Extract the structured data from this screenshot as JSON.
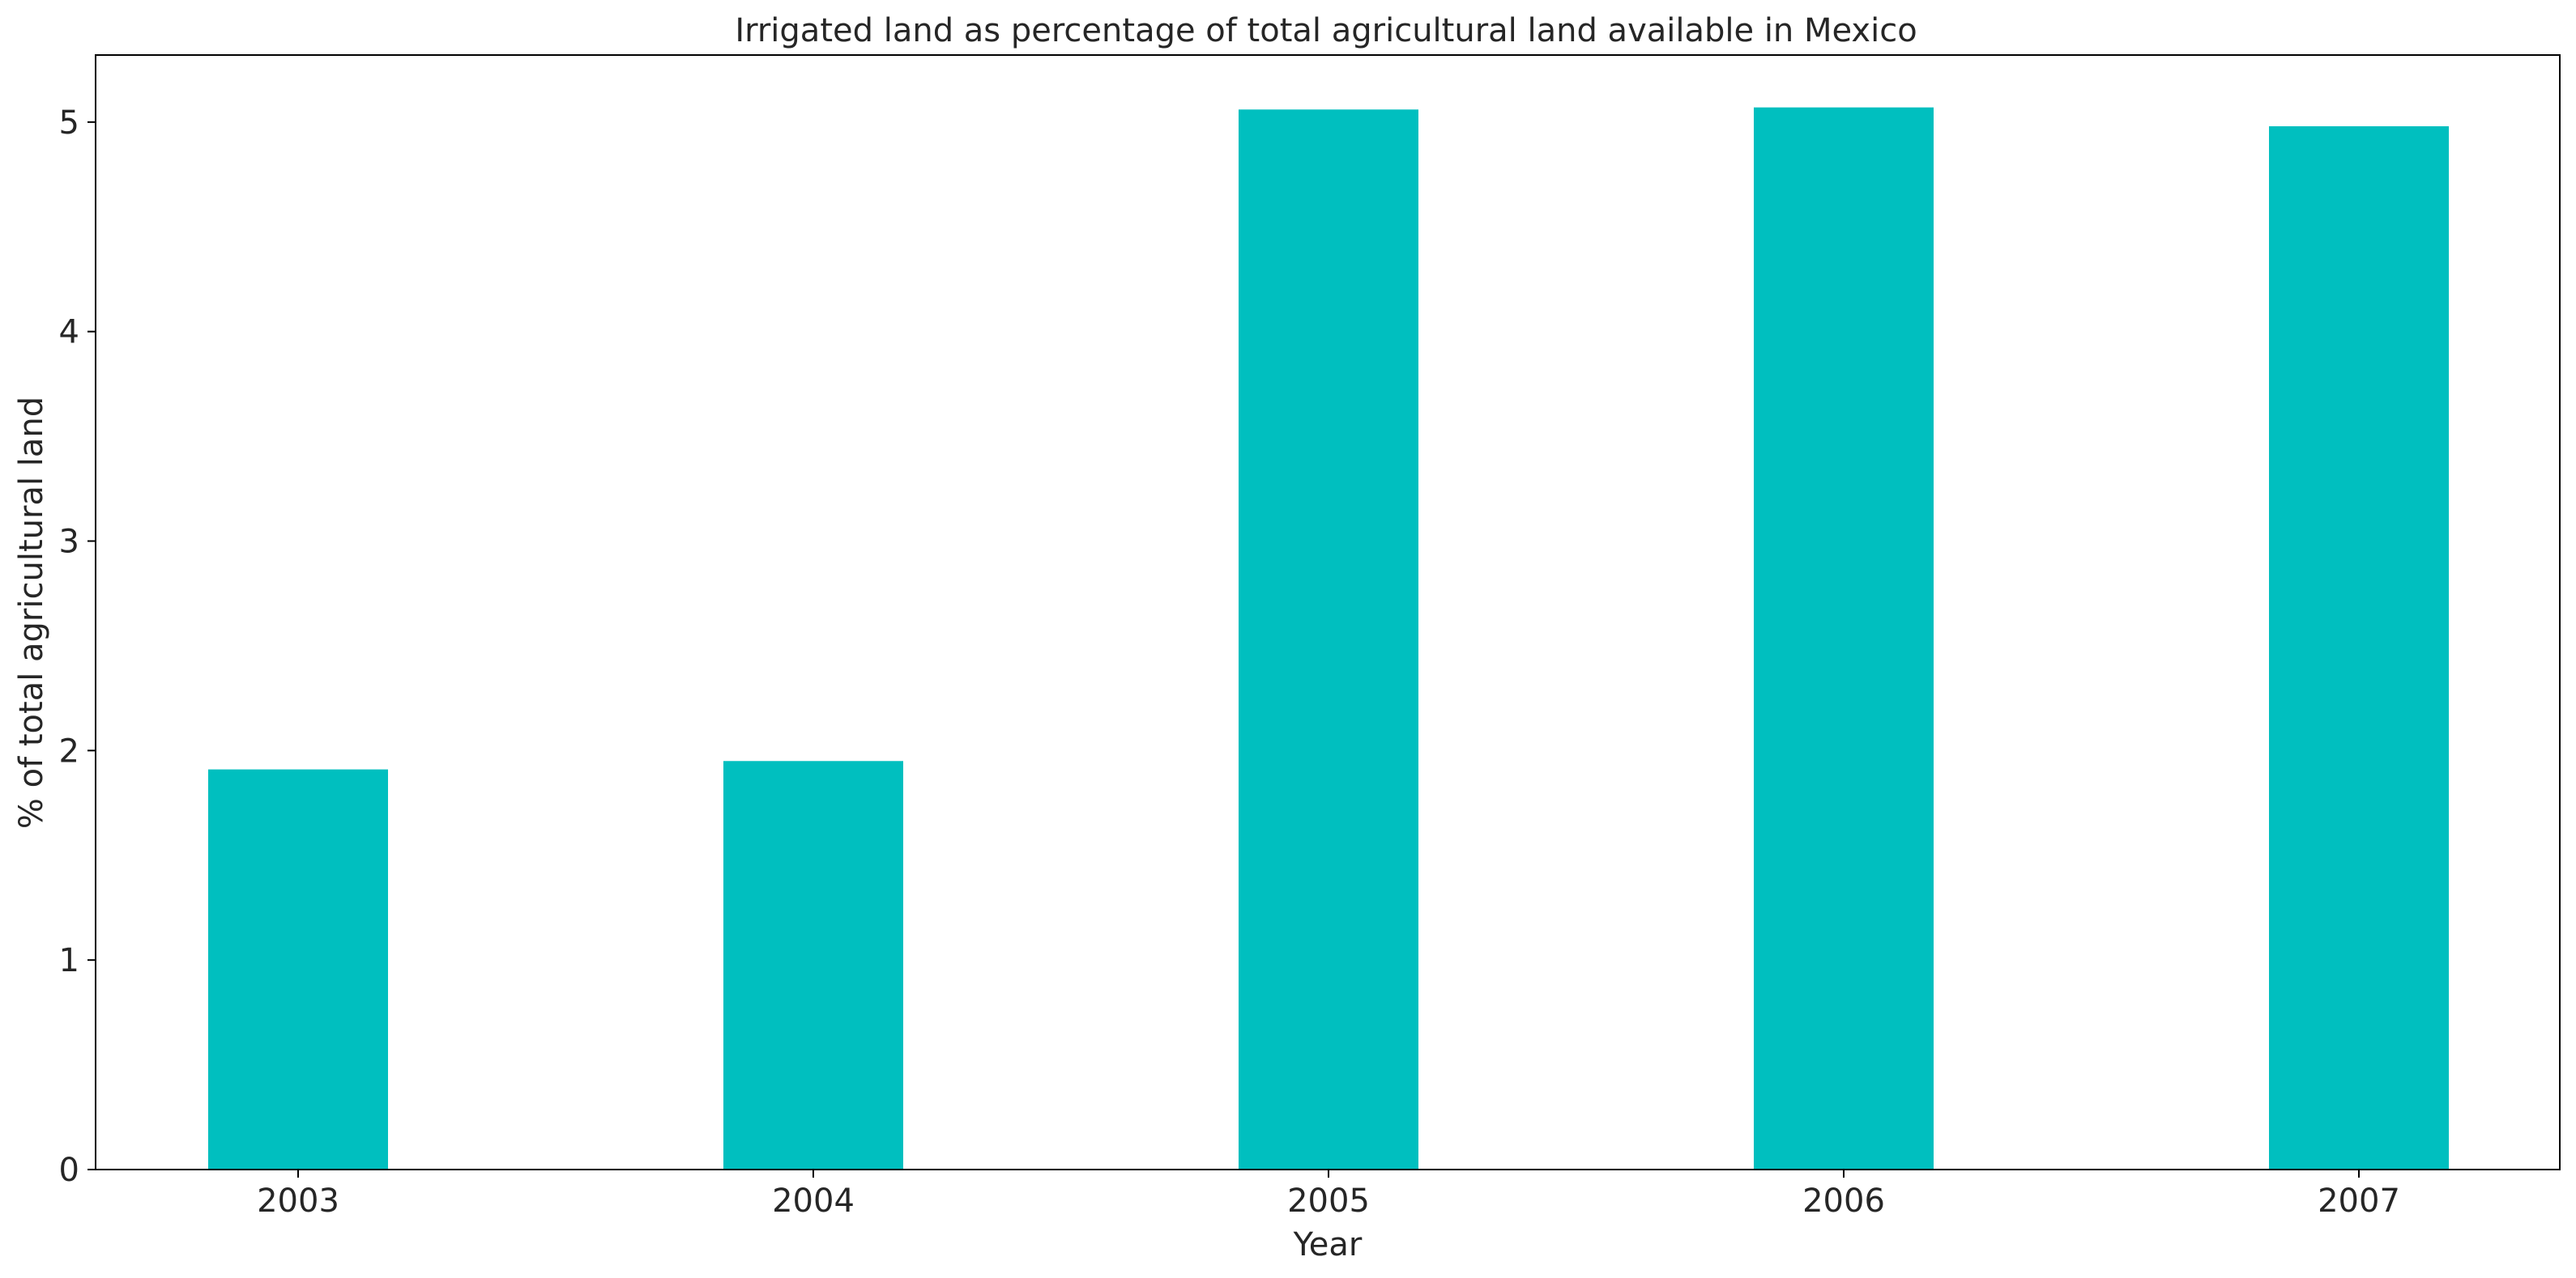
{
  "chart_data": {
    "type": "bar",
    "title": "Irrigated land as percentage of total agricultural land available in Mexico",
    "xlabel": "Year",
    "ylabel": "% of total agricultural land",
    "categories": [
      "2003",
      "2004",
      "2005",
      "2006",
      "2007"
    ],
    "values": [
      1.91,
      1.95,
      5.06,
      5.07,
      4.98
    ],
    "yticks": [
      0,
      1,
      2,
      3,
      4,
      5
    ],
    "ylim": [
      0,
      5.32
    ],
    "grid": false,
    "legend": "none",
    "bar_color": "#00bfbf"
  }
}
